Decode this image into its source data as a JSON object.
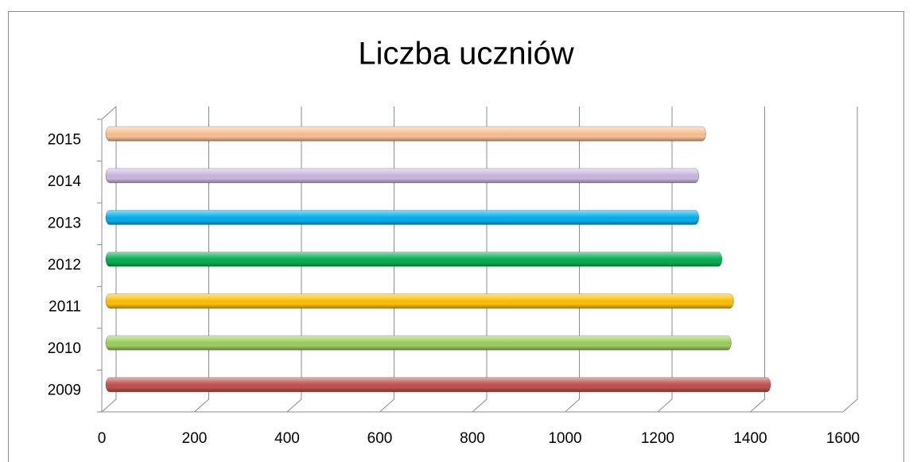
{
  "chart_data": {
    "type": "bar",
    "orientation": "horizontal",
    "title": "Liczba uczniów",
    "categories": [
      "2009",
      "2010",
      "2011",
      "2012",
      "2013",
      "2014",
      "2015"
    ],
    "values": [
      1430,
      1345,
      1350,
      1325,
      1275,
      1275,
      1290
    ],
    "colors": [
      "#c0504d",
      "#9bcf5a",
      "#ffc000",
      "#00b050",
      "#00b0f0",
      "#c9b8e0",
      "#fac090"
    ],
    "xlim": [
      0,
      1600
    ],
    "xticks": [
      0,
      200,
      400,
      600,
      800,
      1000,
      1200,
      1400,
      1600
    ],
    "grid": true
  }
}
